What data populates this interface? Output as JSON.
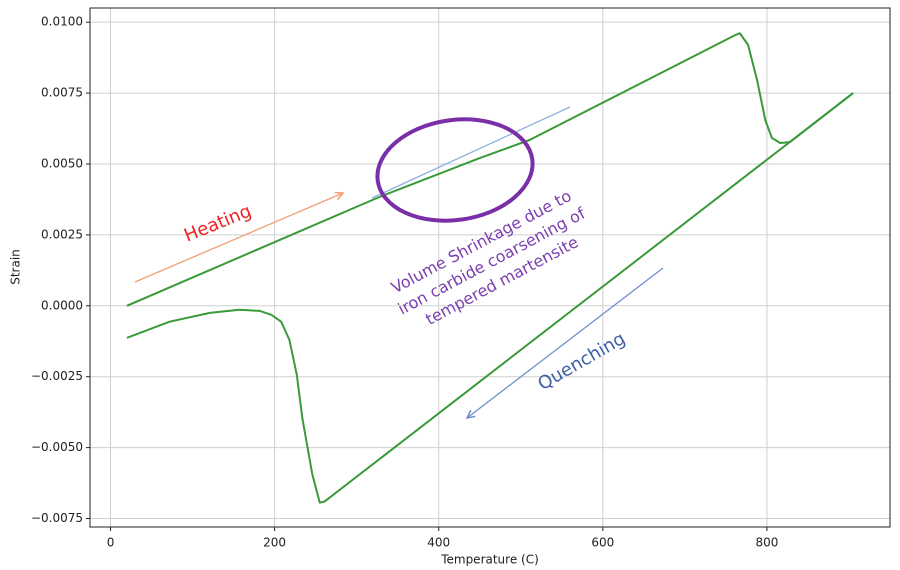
{
  "chart_data": {
    "type": "line",
    "xlabel": "Temperature (C)",
    "ylabel": "Strain",
    "xlim": [
      -25,
      950
    ],
    "ylim": [
      -0.0078,
      0.0105
    ],
    "xticks": [
      0,
      200,
      400,
      600,
      800
    ],
    "yticks": [
      {
        "value": 0.01,
        "label": "0.0100"
      },
      {
        "value": 0.0075,
        "label": "0.0075"
      },
      {
        "value": 0.005,
        "label": "0.0050"
      },
      {
        "value": 0.0025,
        "label": "0.0025"
      },
      {
        "value": 0,
        "label": "0.0000"
      },
      {
        "value": -0.0025,
        "label": "−0.0025"
      },
      {
        "value": -0.005,
        "label": "−0.0050"
      },
      {
        "value": -0.0075,
        "label": "−0.0075"
      }
    ],
    "grid": true,
    "series": [
      {
        "color": "#3a9a3a",
        "x": [
          20,
          328,
          450,
          511,
          761,
          767,
          777,
          788,
          798,
          806,
          816,
          828,
          905
        ],
        "values": [
          0,
          0.00384,
          0.00521,
          0.00585,
          0.00954,
          0.00961,
          0.0092,
          0.00796,
          0.00655,
          0.00592,
          0.00574,
          0.00577,
          0.0075
        ]
      },
      {
        "color": "#3a9a3a",
        "x": [
          905,
          261,
          255,
          246,
          234,
          227,
          218,
          208,
          196,
          182,
          157,
          121,
          72,
          20
        ],
        "values": [
          0.0075,
          -0.0069,
          -0.00694,
          -0.00595,
          -0.004,
          -0.00243,
          -0.0012,
          -0.00056,
          -0.00032,
          -0.00018,
          -0.00014,
          -0.00025,
          -0.00056,
          -0.00113
        ]
      }
    ],
    "annotations": {
      "heating": "Heating",
      "quenching": "Quenching",
      "note": [
        "Volume Shrinkage due to",
        "iron carbide coarsening of",
        "tempered martensite"
      ]
    }
  }
}
